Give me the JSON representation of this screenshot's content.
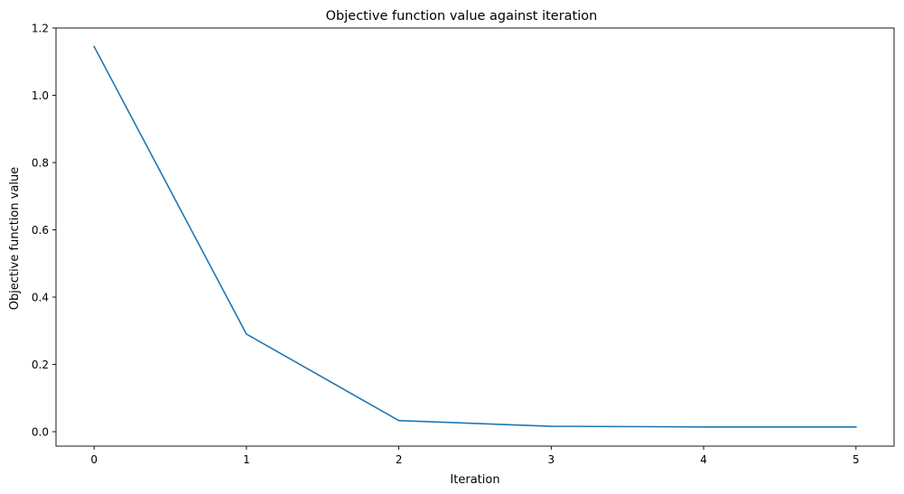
{
  "chart_data": {
    "type": "line",
    "title": "Objective function value against iteration",
    "xlabel": "Iteration",
    "ylabel": "Objective function value",
    "x": [
      0,
      1,
      2,
      3,
      4,
      5
    ],
    "series": [
      {
        "values": [
          1.145,
          0.29,
          0.033,
          0.016,
          0.014,
          0.014
        ],
        "color": "#1f77b4"
      }
    ],
    "xticks": [
      0,
      1,
      2,
      3,
      4,
      5
    ],
    "xtick_labels": [
      "0",
      "1",
      "2",
      "3",
      "4",
      "5"
    ],
    "yticks": [
      0.0,
      0.2,
      0.4,
      0.6,
      0.8,
      1.0,
      1.2
    ],
    "ytick_labels": [
      "0.0",
      "0.2",
      "0.4",
      "0.6",
      "0.8",
      "1.0",
      "1.2"
    ],
    "xlim": [
      -0.25,
      5.25
    ],
    "ylim": [
      -0.043,
      1.2
    ],
    "grid": false,
    "legend": "none"
  }
}
